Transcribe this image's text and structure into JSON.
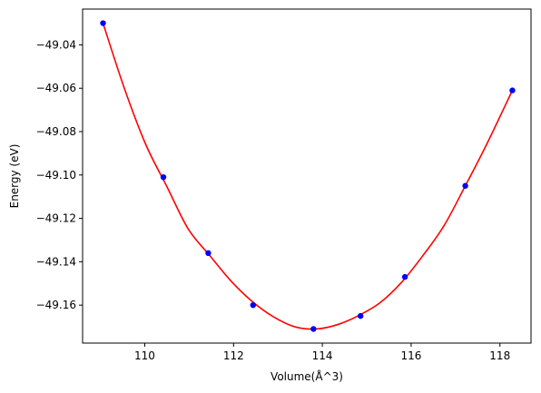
{
  "chart_data": {
    "type": "scatter",
    "title": "",
    "xlabel": "Volume(Å^3)",
    "ylabel": "Energy (eV)",
    "xlim": [
      108.6,
      118.7
    ],
    "ylim": [
      -49.1775,
      -49.0235
    ],
    "xticks": [
      110,
      112,
      114,
      116,
      118
    ],
    "xtick_labels": [
      "110",
      "112",
      "114",
      "116",
      "118"
    ],
    "yticks": [
      -49.04,
      -49.06,
      -49.08,
      -49.1,
      -49.12,
      -49.14,
      -49.16
    ],
    "ytick_labels": [
      "−49.04",
      "−49.06",
      "−49.08",
      "−49.10",
      "−49.12",
      "−49.14",
      "−49.16"
    ],
    "grid": false,
    "series": [
      {
        "kind": "points",
        "color": "#0000ff",
        "marker": "circle",
        "x": [
          109.06,
          110.42,
          111.43,
          112.44,
          113.8,
          114.86,
          115.86,
          117.22,
          118.28
        ],
        "y": [
          -49.03,
          -49.101,
          -49.136,
          -49.16,
          -49.171,
          -49.165,
          -49.147,
          -49.105,
          -49.061
        ]
      },
      {
        "kind": "fit-curve",
        "color": "#ff0000",
        "x": [
          109.06,
          109.54,
          110.02,
          110.5,
          110.98,
          111.46,
          111.94,
          112.42,
          112.9,
          113.38,
          113.86,
          114.34,
          114.82,
          115.3,
          115.78,
          116.26,
          116.74,
          117.22,
          117.7,
          118.28
        ],
        "y": [
          -49.03,
          -49.06,
          -49.0858,
          -49.1054,
          -49.1249,
          -49.137,
          -49.1488,
          -49.1583,
          -49.1654,
          -49.17,
          -49.171,
          -49.169,
          -49.1648,
          -49.1589,
          -49.1496,
          -49.1373,
          -49.1234,
          -49.105,
          -49.0859,
          -49.061
        ]
      }
    ]
  }
}
